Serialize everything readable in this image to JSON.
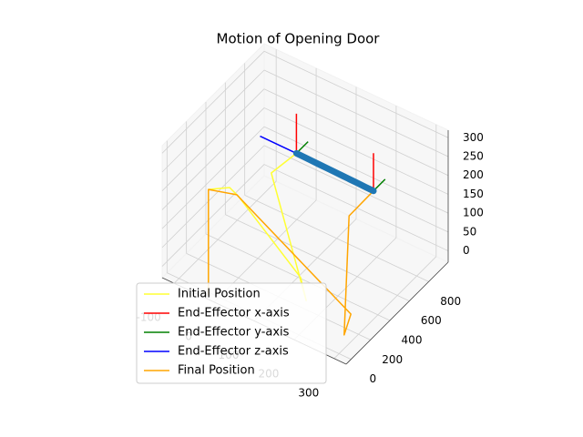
{
  "chart_data": {
    "type": "line3d",
    "title": "Motion of Opening Door",
    "xlim": [
      -130,
      330
    ],
    "ylim": [
      -50,
      1000
    ],
    "zlim": [
      -30,
      320
    ],
    "xticks": [
      -100,
      0,
      100,
      200,
      300
    ],
    "yticks": [
      0,
      200,
      400,
      600,
      800
    ],
    "zticks": [
      0,
      50,
      100,
      150,
      200,
      250,
      300
    ],
    "grid": true,
    "legend": "lower left",
    "series": [
      {
        "name": "Initial Position",
        "color": "#ffff33",
        "x": [
          -41,
          -5,
          16,
          150,
          173,
          25,
          60
        ],
        "y": [
          60,
          130,
          136,
          222,
          185,
          435,
          550
        ],
        "z": [
          220,
          225,
          210,
          40,
          0,
          200,
          240
        ]
      },
      {
        "name": "End-Effector x-axis",
        "color": "#ff0000",
        "x": [
          60,
          60,
          null,
          210,
          210
        ],
        "y": [
          550,
          550,
          null,
          725,
          725
        ],
        "z": [
          240,
          345,
          null,
          170,
          270
        ]
      },
      {
        "name": "End-Effector y-axis",
        "color": "#008000",
        "x": [
          60,
          60,
          null,
          210,
          210
        ],
        "y": [
          550,
          670,
          null,
          725,
          845
        ],
        "z": [
          240,
          240,
          null,
          170,
          170
        ]
      },
      {
        "name": "End-Effector z-axis",
        "color": "#0000ff",
        "x": [
          -31,
          60,
          null,
          114,
          210
        ],
        "y": [
          550,
          550,
          null,
          725,
          725
        ],
        "z": [
          240,
          240,
          null,
          170,
          170
        ]
      },
      {
        "name": "Final Position",
        "color": "#ffa500",
        "x": [
          -41,
          -41,
          13,
          285,
          296,
          166,
          210
        ],
        "y": [
          60,
          60,
          129,
          184,
          69,
          655,
          725
        ],
        "z": [
          -60,
          220,
          215,
          20,
          0,
          100,
          170
        ]
      },
      {
        "color": "#1f77b4",
        "x": [
          60,
          75,
          90,
          105,
          120,
          135,
          150,
          165,
          180,
          195,
          210
        ],
        "y": [
          550,
          567.5,
          585,
          602.5,
          620,
          637.5,
          655,
          672.5,
          690,
          707.5,
          725
        ],
        "z": [
          240,
          233,
          226,
          219,
          212,
          205,
          198,
          191,
          184,
          177,
          170
        ]
      }
    ]
  }
}
